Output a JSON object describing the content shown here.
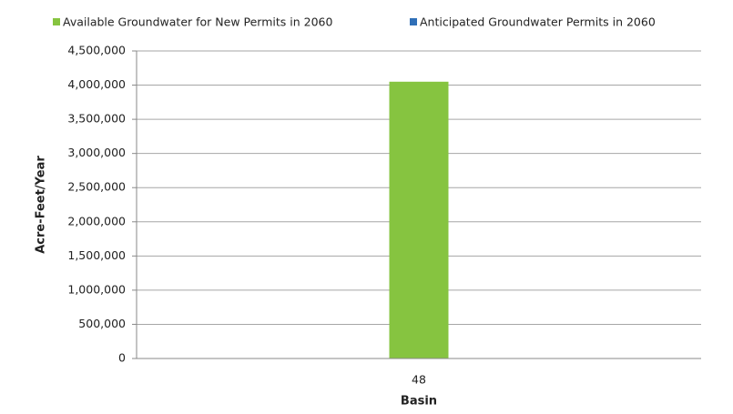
{
  "chart_data": {
    "type": "bar",
    "categories": [
      "48"
    ],
    "series": [
      {
        "name": "Available Groundwater for New Permits in 2060",
        "color": "#86c440",
        "values": [
          4050000
        ]
      },
      {
        "name": "Anticipated Groundwater Permits in 2060",
        "color": "#2f6fb7",
        "values": [
          0
        ]
      }
    ],
    "ylabel": "Acre-Feet/Year",
    "xlabel": "Basin",
    "ylim": [
      0,
      4500000
    ],
    "yticks": [
      0,
      {
        "value": 500000,
        "label": "500,000"
      },
      {
        "value": 1000000,
        "label": "1,000,000"
      },
      {
        "value": 1500000,
        "label": "1,500,000"
      },
      {
        "value": 2000000,
        "label": "2,000,000"
      },
      {
        "value": 2500000,
        "label": "2,500,000"
      },
      {
        "value": 3000000,
        "label": "3,000,000"
      },
      {
        "value": 3500000,
        "label": "3,500,000"
      },
      {
        "value": 4000000,
        "label": "4,000,000"
      },
      {
        "value": 4500000,
        "label": "4,500,000"
      }
    ],
    "grid": true,
    "legend": "top"
  }
}
